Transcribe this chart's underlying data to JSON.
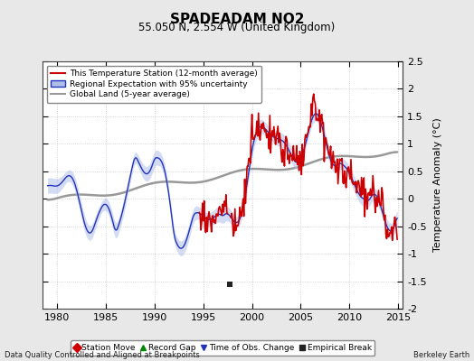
{
  "title": "SPADEADAM NO2",
  "subtitle": "55.050 N, 2.554 W (United Kingdom)",
  "ylabel": "Temperature Anomaly (°C)",
  "xlim": [
    1978.5,
    2015.5
  ],
  "ylim": [
    -2.0,
    2.5
  ],
  "yticks": [
    -2,
    -1.5,
    -1,
    -0.5,
    0,
    0.5,
    1,
    1.5,
    2,
    2.5
  ],
  "xticks": [
    1980,
    1985,
    1990,
    1995,
    2000,
    2005,
    2010,
    2015
  ],
  "background_color": "#e8e8e8",
  "plot_bg_color": "#ffffff",
  "red_line_color": "#cc0000",
  "blue_line_color": "#2233bb",
  "blue_fill_color": "#b0c0e8",
  "gray_line_color": "#999999",
  "bottom_label_left": "Data Quality Controlled and Aligned at Breakpoints",
  "bottom_label_right": "Berkeley Earth",
  "legend_labels": [
    "This Temperature Station (12-month average)",
    "Regional Expectation with 95% uncertainty",
    "Global Land (5-year average)"
  ],
  "marker_legend": {
    "station_move": {
      "color": "#cc0000",
      "marker": "D",
      "label": "Station Move"
    },
    "record_gap": {
      "color": "#008800",
      "marker": "^",
      "label": "Record Gap"
    },
    "time_obs": {
      "color": "#2233bb",
      "marker": "v",
      "label": "Time of Obs. Change"
    },
    "empirical_break": {
      "color": "#222222",
      "marker": "s",
      "label": "Empirical Break"
    }
  },
  "empirical_break_x": 1997.75,
  "empirical_break_y": -1.55
}
